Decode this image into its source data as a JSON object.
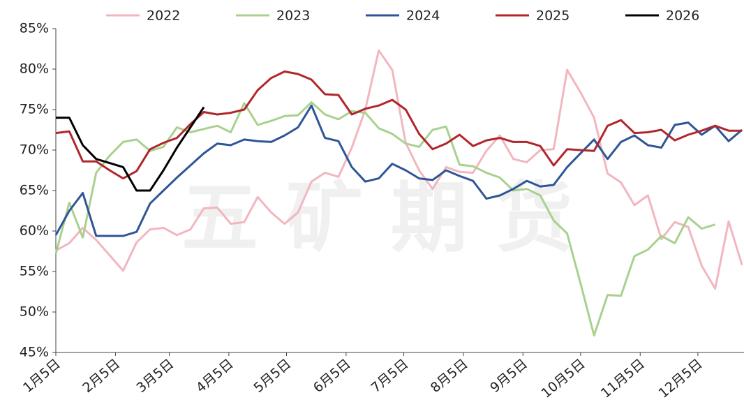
{
  "chart_data": {
    "type": "line",
    "watermark": "五矿期货",
    "x": [
      0,
      7,
      14,
      21,
      28,
      35,
      42,
      49,
      56,
      63,
      70,
      77,
      84,
      91,
      98,
      105,
      112,
      119,
      126,
      133,
      140,
      147,
      154,
      161,
      168,
      175,
      182,
      189,
      196,
      203,
      210,
      217,
      224,
      231,
      238,
      245,
      252,
      259,
      266,
      273,
      280,
      287,
      294,
      301,
      308,
      315,
      322,
      329,
      336,
      343,
      350,
      357
    ],
    "xlim": [
      0,
      358
    ],
    "xticks": [
      {
        "value": 0,
        "label": "1月5日"
      },
      {
        "value": 31,
        "label": "2月5日"
      },
      {
        "value": 59,
        "label": "3月5日"
      },
      {
        "value": 90,
        "label": "4月5日"
      },
      {
        "value": 120,
        "label": "5月5日"
      },
      {
        "value": 151,
        "label": "6月5日"
      },
      {
        "value": 181,
        "label": "7月5日"
      },
      {
        "value": 212,
        "label": "8月5日"
      },
      {
        "value": 243,
        "label": "9月5日"
      },
      {
        "value": 273,
        "label": "10月5日"
      },
      {
        "value": 304,
        "label": "11月5日"
      },
      {
        "value": 334,
        "label": "12月5日"
      }
    ],
    "ylim": [
      45,
      85
    ],
    "yticks": [
      {
        "value": 45,
        "label": "45%"
      },
      {
        "value": 50,
        "label": "50%"
      },
      {
        "value": 55,
        "label": "55%"
      },
      {
        "value": 60,
        "label": "60%"
      },
      {
        "value": 65,
        "label": "65%"
      },
      {
        "value": 70,
        "label": "70%"
      },
      {
        "value": 75,
        "label": "75%"
      },
      {
        "value": 80,
        "label": "80%"
      },
      {
        "value": 85,
        "label": "85%"
      }
    ],
    "legend": "top",
    "series": [
      {
        "name": "2022",
        "color": "#f2b6bf",
        "values": [
          57.6,
          58.5,
          60.4,
          58.9,
          57,
          55.1,
          58.6,
          60.2,
          60.4,
          59.5,
          60.2,
          62.8,
          62.9,
          60.9,
          61.1,
          64.2,
          62.3,
          60.9,
          62.3,
          66.1,
          67.2,
          66.7,
          70.3,
          75,
          82.3,
          79.9,
          70.9,
          67.5,
          65.2,
          67.9,
          67.3,
          67.2,
          69.9,
          71.8,
          68.9,
          68.5,
          70,
          70.1,
          79.9,
          77.1,
          74,
          67.1,
          66,
          63.2,
          64.4,
          59,
          61.1,
          60.5,
          55.7,
          52.9,
          61.2,
          55.8
        ]
      },
      {
        "name": "2023",
        "color": "#a9d18e",
        "values": [
          57.2,
          63.5,
          59.2,
          67.2,
          69.3,
          71,
          71.3,
          69.9,
          70.4,
          72.8,
          72.2,
          72.6,
          73,
          72.2,
          75.8,
          73.1,
          73.6,
          74.2,
          74.3,
          75.9,
          74.4,
          73.8,
          74.8,
          74.6,
          72.7,
          72,
          70.8,
          70.4,
          72.5,
          72.9,
          68.2,
          68,
          67.2,
          66.6,
          65,
          65.2,
          64.4,
          61.3,
          59.7,
          53.5,
          47.1,
          52.1,
          52,
          56.9,
          57.7,
          59.4,
          58.5,
          61.7,
          60.3,
          60.8,
          null,
          null
        ]
      },
      {
        "name": "2024",
        "color": "#2f5597",
        "values": [
          59.5,
          62.5,
          64.7,
          59.4,
          59.4,
          59.4,
          59.9,
          63.4,
          65,
          66.6,
          68.1,
          69.6,
          70.8,
          70.6,
          71.3,
          71.1,
          71,
          71.8,
          72.8,
          75.5,
          71.5,
          71.1,
          67.9,
          66.1,
          66.5,
          68.3,
          67.5,
          66.5,
          66.3,
          67.5,
          66.8,
          66.2,
          64,
          64.4,
          65.2,
          66.2,
          65.5,
          65.7,
          67.9,
          69.6,
          71.3,
          68.9,
          71,
          71.8,
          70.6,
          70.3,
          73.1,
          73.4,
          71.9,
          73,
          71.1,
          72.5
        ]
      },
      {
        "name": "2025",
        "color": "#b0262b",
        "values": [
          72.1,
          72.3,
          68.6,
          68.6,
          67.5,
          66.5,
          67.4,
          70.1,
          70.9,
          71.5,
          73.2,
          74.7,
          74.4,
          74.6,
          75,
          77.4,
          78.9,
          79.7,
          79.4,
          78.7,
          76.9,
          76.8,
          74.4,
          75.1,
          75.5,
          76.2,
          75,
          72,
          70.1,
          70.8,
          71.9,
          70.5,
          71.2,
          71.5,
          71,
          71,
          70.5,
          68.1,
          70.1,
          70,
          69.9,
          73,
          73.7,
          72.1,
          72.2,
          72.5,
          71.2,
          71.9,
          72.4,
          73,
          72.4,
          72.4
        ]
      },
      {
        "name": "2026",
        "color": "#000000",
        "values": [
          74,
          74,
          70.6,
          68.9,
          68.4,
          67.9,
          65,
          65,
          67.5,
          70.3,
          72.8,
          75.3,
          null,
          null,
          null,
          null,
          null,
          null,
          null,
          null,
          null,
          null,
          null,
          null,
          null,
          null,
          null,
          null,
          null,
          null,
          null,
          null,
          null,
          null,
          null,
          null,
          null,
          null,
          null,
          null,
          null,
          null,
          null,
          null,
          null,
          null,
          null,
          null,
          null,
          null,
          null,
          null
        ]
      }
    ]
  }
}
